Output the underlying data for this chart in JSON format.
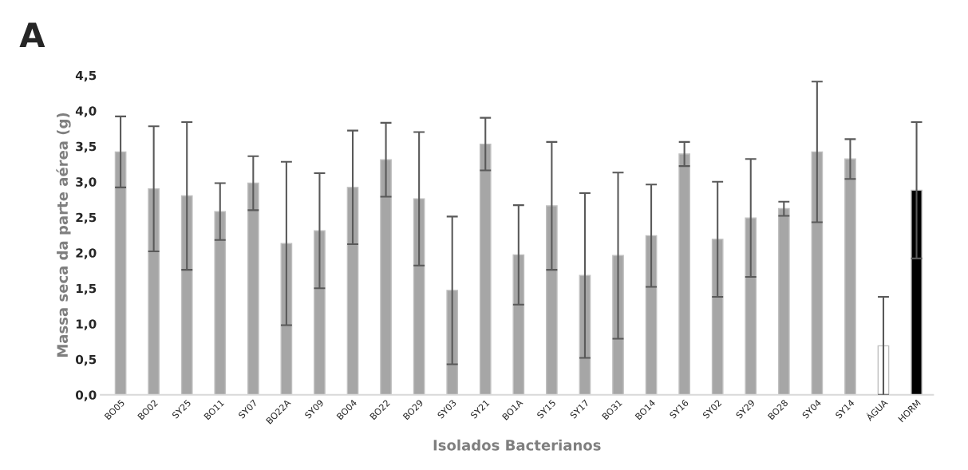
{
  "chart_data": {
    "type": "bar",
    "title": "A",
    "xlabel": "Isolados Bacterianos",
    "ylabel": "Massa seca da parte aérea (g)",
    "categories": [
      "BO05",
      "BO02",
      "SY25",
      "BO11",
      "SY07",
      "BO22A",
      "SY09",
      "BO04",
      "BO22",
      "BO29",
      "SY03",
      "SY21",
      "BO1A",
      "SY15",
      "SY17",
      "BO31",
      "BO14",
      "SY16",
      "SY02",
      "SY29",
      "BO28",
      "SY04",
      "SY14",
      "ÁGUA",
      "HORM"
    ],
    "values": [
      3.42,
      2.9,
      2.8,
      2.58,
      2.98,
      2.13,
      2.31,
      2.92,
      3.31,
      2.76,
      1.47,
      3.53,
      1.97,
      2.66,
      1.68,
      1.96,
      2.24,
      3.39,
      2.19,
      2.49,
      2.62,
      3.42,
      3.32,
      0.69,
      2.88
    ],
    "errors": [
      0.5,
      0.88,
      1.04,
      0.4,
      0.38,
      1.15,
      0.81,
      0.8,
      0.52,
      0.94,
      1.04,
      0.37,
      0.7,
      0.9,
      1.16,
      1.17,
      0.72,
      0.17,
      0.81,
      0.83,
      0.1,
      0.99,
      0.28,
      0.69,
      0.96
    ],
    "colors": [
      "#a6a6a6",
      "#a6a6a6",
      "#a6a6a6",
      "#a6a6a6",
      "#a6a6a6",
      "#a6a6a6",
      "#a6a6a6",
      "#a6a6a6",
      "#a6a6a6",
      "#a6a6a6",
      "#a6a6a6",
      "#a6a6a6",
      "#a6a6a6",
      "#a6a6a6",
      "#a6a6a6",
      "#a6a6a6",
      "#a6a6a6",
      "#a6a6a6",
      "#a6a6a6",
      "#a6a6a6",
      "#a6a6a6",
      "#a6a6a6",
      "#a6a6a6",
      "#ffffff",
      "#000000"
    ],
    "ylim": [
      0,
      4.5
    ],
    "yticks": [
      {
        "value": 0,
        "label": "0,0"
      },
      {
        "value": 0.5,
        "label": "0,5"
      },
      {
        "value": 1,
        "label": "1,0"
      },
      {
        "value": 1.5,
        "label": "1,5"
      },
      {
        "value": 2,
        "label": "2,0"
      },
      {
        "value": 2.5,
        "label": "2,5"
      },
      {
        "value": 3,
        "label": "3,0"
      },
      {
        "value": 3.5,
        "label": "3,5"
      },
      {
        "value": 4,
        "label": "4,0"
      },
      {
        "value": 4.5,
        "label": "4,5"
      }
    ],
    "grid": false,
    "legend": false
  }
}
